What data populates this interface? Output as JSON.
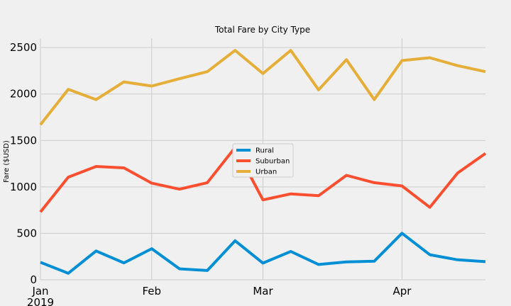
{
  "chart_data": {
    "type": "line",
    "title": "Total Fare by City Type",
    "xlabel": "",
    "ylabel": "Fare ($USD)",
    "ylim": [
      0,
      2600
    ],
    "yticks": [
      0,
      500,
      1000,
      1500,
      2000,
      2500
    ],
    "xlim": [
      0,
      16
    ],
    "x": [
      0,
      1,
      2,
      3,
      4,
      5,
      6,
      7,
      8,
      9,
      10,
      11,
      12,
      13,
      14,
      15,
      16
    ],
    "xticks": [
      {
        "x": 0,
        "label": "Jan",
        "sublabel": "2019"
      },
      {
        "x": 4,
        "label": "Feb",
        "sublabel": ""
      },
      {
        "x": 8,
        "label": "Mar",
        "sublabel": ""
      },
      {
        "x": 13,
        "label": "Apr",
        "sublabel": ""
      }
    ],
    "legend_position": "center",
    "grid": true,
    "series": [
      {
        "name": "Rural",
        "color": "#008fd5",
        "values": [
          188,
          70,
          310,
          182,
          335,
          118,
          100,
          420,
          180,
          305,
          165,
          192,
          200,
          501,
          270,
          215,
          195
        ]
      },
      {
        "name": "Suburban",
        "color": "#fc4f30",
        "values": [
          730,
          1105,
          1220,
          1205,
          1040,
          975,
          1045,
          1425,
          860,
          925,
          905,
          1125,
          1045,
          1010,
          780,
          1150,
          1360
        ]
      },
      {
        "name": "Urban",
        "color": "#e5ae38",
        "values": [
          1670,
          2050,
          1940,
          2130,
          2085,
          2165,
          2240,
          2470,
          2220,
          2470,
          2045,
          2370,
          1940,
          2360,
          2390,
          2305,
          2240
        ]
      }
    ]
  }
}
